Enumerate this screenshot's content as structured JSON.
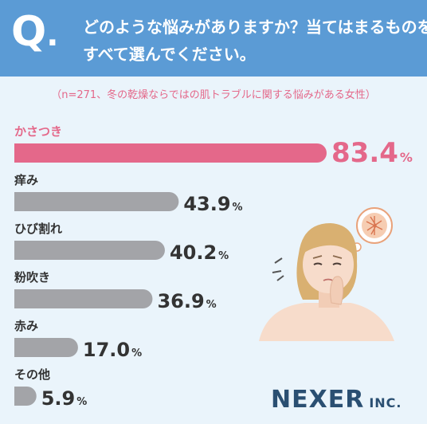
{
  "header": {
    "q_letter": "Q",
    "q_dot": ".",
    "question_line1": "どのような悩みがありますか？当てはまるものを",
    "question_line2": "すべて選んでください。"
  },
  "subtitle": "（n=271、冬の乾燥ならではの肌トラブルに関する悩みがある女性）",
  "chart_data": {
    "type": "bar",
    "orientation": "horizontal",
    "categories": [
      "かさつき",
      "痒み",
      "ひび割れ",
      "粉吹き",
      "赤み",
      "その他"
    ],
    "values": [
      83.4,
      43.9,
      40.2,
      36.9,
      17.0,
      5.9
    ],
    "value_labels": [
      "83.4",
      "43.9",
      "40.2",
      "36.9",
      "17.0",
      "5.9"
    ],
    "unit": "%",
    "highlight_index": 0,
    "colors": {
      "highlight": "#e4688a",
      "default": "#a3a4a8",
      "highlight_text": "#e4688a",
      "default_text": "#333333"
    }
  },
  "logo": {
    "name": "NEXER",
    "suffix": "INC."
  }
}
